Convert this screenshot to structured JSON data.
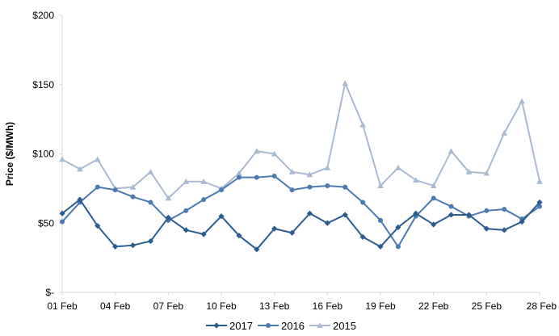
{
  "chart_data": {
    "type": "line",
    "title": "",
    "xlabel": "",
    "ylabel": "Price ($/MWh)",
    "ylim": [
      0,
      200
    ],
    "yticks": [
      0,
      50,
      100,
      150,
      200
    ],
    "ytick_labels": [
      "$-",
      "$50",
      "$100",
      "$150",
      "$200"
    ],
    "grid": {
      "x": false,
      "y": false
    },
    "legend_position": "bottom",
    "x": [
      "01 Feb",
      "02 Feb",
      "03 Feb",
      "04 Feb",
      "05 Feb",
      "06 Feb",
      "07 Feb",
      "08 Feb",
      "09 Feb",
      "10 Feb",
      "11 Feb",
      "12 Feb",
      "13 Feb",
      "14 Feb",
      "15 Feb",
      "16 Feb",
      "17 Feb",
      "18 Feb",
      "19 Feb",
      "20 Feb",
      "21 Feb",
      "22 Feb",
      "23 Feb",
      "24 Feb",
      "25 Feb",
      "26 Feb",
      "27 Feb",
      "28 Feb"
    ],
    "xtick_labels": [
      "01 Feb",
      "04 Feb",
      "07 Feb",
      "10 Feb",
      "13 Feb",
      "16 Feb",
      "19 Feb",
      "22 Feb",
      "25 Feb",
      "28 Feb"
    ],
    "xtick_indices": [
      0,
      3,
      6,
      9,
      12,
      15,
      18,
      21,
      24,
      27
    ],
    "series": [
      {
        "name": "2017",
        "color": "#2a5d8e",
        "marker": "diamond",
        "values": [
          57,
          67,
          48,
          33,
          34,
          37,
          54,
          45,
          42,
          55,
          41,
          31,
          46,
          43,
          57,
          50,
          56,
          40,
          33,
          47,
          57,
          49,
          56,
          56,
          46,
          45,
          51,
          65
        ]
      },
      {
        "name": "2016",
        "color": "#4a7ab0",
        "marker": "circle",
        "values": [
          51,
          65,
          76,
          74,
          69,
          65,
          52,
          59,
          67,
          74,
          83,
          83,
          84,
          74,
          76,
          77,
          76,
          65,
          52,
          33,
          55,
          68,
          62,
          55,
          59,
          60,
          53,
          62
        ]
      },
      {
        "name": "2015",
        "color": "#a8b9d1",
        "marker": "triangle",
        "values": [
          96,
          89,
          96,
          75,
          76,
          87,
          68,
          80,
          80,
          75,
          86,
          102,
          100,
          87,
          85,
          90,
          151,
          121,
          77,
          90,
          81,
          77,
          102,
          87,
          86,
          115,
          138,
          80
        ]
      }
    ]
  }
}
